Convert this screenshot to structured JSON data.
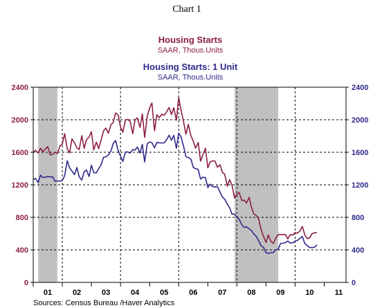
{
  "chart_label": "Chart 1",
  "source": "Sources:   Census Bureau /Haver Analytics",
  "colors": {
    "series1": "#8b1e3f",
    "series2": "#2e2a8c",
    "recession": "#c0c0c0"
  },
  "chart_data": {
    "type": "line",
    "series": [
      {
        "name": "Housing Starts",
        "unit": "SAAR, Thous.Units",
        "color": "#8b1e3f",
        "x": [
          2001.0,
          2001.08,
          2001.17,
          2001.25,
          2001.33,
          2001.42,
          2001.5,
          2001.58,
          2001.67,
          2001.75,
          2001.83,
          2001.92,
          2002.0,
          2002.08,
          2002.17,
          2002.25,
          2002.33,
          2002.42,
          2002.5,
          2002.58,
          2002.67,
          2002.75,
          2002.83,
          2002.92,
          2003.0,
          2003.08,
          2003.17,
          2003.25,
          2003.33,
          2003.42,
          2003.5,
          2003.58,
          2003.67,
          2003.75,
          2003.83,
          2003.92,
          2004.0,
          2004.08,
          2004.17,
          2004.25,
          2004.33,
          2004.42,
          2004.5,
          2004.58,
          2004.67,
          2004.75,
          2004.83,
          2004.92,
          2005.0,
          2005.08,
          2005.17,
          2005.25,
          2005.33,
          2005.42,
          2005.5,
          2005.58,
          2005.67,
          2005.75,
          2005.83,
          2005.92,
          2006.0,
          2006.08,
          2006.17,
          2006.25,
          2006.33,
          2006.42,
          2006.5,
          2006.58,
          2006.67,
          2006.75,
          2006.83,
          2006.92,
          2007.0,
          2007.08,
          2007.17,
          2007.25,
          2007.33,
          2007.42,
          2007.5,
          2007.58,
          2007.67,
          2007.75,
          2007.83,
          2007.92,
          2008.0,
          2008.08,
          2008.17,
          2008.25,
          2008.33,
          2008.42,
          2008.5,
          2008.58,
          2008.67,
          2008.75,
          2008.83,
          2008.92,
          2009.0,
          2009.08,
          2009.17,
          2009.25,
          2009.33,
          2009.42,
          2009.5,
          2009.58,
          2009.67,
          2009.75,
          2009.83,
          2009.92,
          2010.0,
          2010.08,
          2010.17,
          2010.25,
          2010.33,
          2010.42,
          2010.5,
          2010.58,
          2010.67,
          2010.75
        ],
        "values": [
          1600,
          1625,
          1590,
          1649,
          1606,
          1642,
          1670,
          1567,
          1575,
          1602,
          1584,
          1680,
          1698,
          1829,
          1642,
          1592,
          1764,
          1717,
          1655,
          1633,
          1804,
          1648,
          1753,
          1788,
          1853,
          1629,
          1726,
          1643,
          1751,
          1867,
          1897,
          1833,
          1939,
          1967,
          2083,
          2057,
          1911,
          1846,
          1998,
          2003,
          1981,
          1828,
          2002,
          2024,
          1905,
          2072,
          1782,
          2042,
          2144,
          2207,
          1864,
          2061,
          2025,
          2068,
          2054,
          2095,
          2151,
          2065,
          2147,
          1994,
          2273,
          2119,
          1969,
          1821,
          1942,
          1802,
          1737,
          1650,
          1720,
          1491,
          1570,
          1649,
          1409,
          1480,
          1495,
          1490,
          1415,
          1448,
          1354,
          1330,
          1183,
          1264,
          1197,
          1037,
          1084,
          1103,
          1005,
          1013,
          975,
          1046,
          923,
          844,
          820,
          777,
          652,
          560,
          490,
          582,
          505,
          478,
          540,
          587,
          589,
          586,
          588,
          534,
          588,
          581,
          614,
          605,
          636,
          687,
          588,
          539,
          546,
          598,
          610,
          612
        ],
        "recessions": [
          [
            2001.17,
            2001.83
          ],
          [
            2007.92,
            2009.42
          ]
        ]
      },
      {
        "name": "Housing Starts: 1 Unit",
        "unit": "SAAR, Thous.Units",
        "color": "#2e2a8c",
        "x": [
          2001.0,
          2001.08,
          2001.17,
          2001.25,
          2001.33,
          2001.42,
          2001.5,
          2001.58,
          2001.67,
          2001.75,
          2001.83,
          2001.92,
          2002.0,
          2002.08,
          2002.17,
          2002.25,
          2002.33,
          2002.42,
          2002.5,
          2002.58,
          2002.67,
          2002.75,
          2002.83,
          2002.92,
          2003.0,
          2003.08,
          2003.17,
          2003.25,
          2003.33,
          2003.42,
          2003.5,
          2003.58,
          2003.67,
          2003.75,
          2003.83,
          2003.92,
          2004.0,
          2004.08,
          2004.17,
          2004.25,
          2004.33,
          2004.42,
          2004.5,
          2004.58,
          2004.67,
          2004.75,
          2004.83,
          2004.92,
          2005.0,
          2005.08,
          2005.17,
          2005.25,
          2005.33,
          2005.42,
          2005.5,
          2005.58,
          2005.67,
          2005.75,
          2005.83,
          2005.92,
          2006.0,
          2006.08,
          2006.17,
          2006.25,
          2006.33,
          2006.42,
          2006.5,
          2006.58,
          2006.67,
          2006.75,
          2006.83,
          2006.92,
          2007.0,
          2007.08,
          2007.17,
          2007.25,
          2007.33,
          2007.42,
          2007.5,
          2007.58,
          2007.67,
          2007.75,
          2007.83,
          2007.92,
          2008.0,
          2008.08,
          2008.17,
          2008.25,
          2008.33,
          2008.42,
          2008.5,
          2008.58,
          2008.67,
          2008.75,
          2008.83,
          2008.92,
          2009.0,
          2009.08,
          2009.17,
          2009.25,
          2009.33,
          2009.42,
          2009.5,
          2009.58,
          2009.67,
          2009.75,
          2009.83,
          2009.92,
          2010.0,
          2010.08,
          2010.17,
          2010.25,
          2010.33,
          2010.42,
          2010.5,
          2010.58,
          2010.67,
          2010.75
        ],
        "values": [
          1263,
          1278,
          1226,
          1318,
          1290,
          1294,
          1305,
          1296,
          1297,
          1243,
          1246,
          1246,
          1253,
          1311,
          1496,
          1406,
          1370,
          1325,
          1414,
          1300,
          1258,
          1358,
          1382,
          1302,
          1441,
          1349,
          1346,
          1400,
          1445,
          1540,
          1544,
          1565,
          1615,
          1706,
          1745,
          1619,
          1555,
          1487,
          1603,
          1604,
          1589,
          1633,
          1627,
          1665,
          1590,
          1697,
          1480,
          1704,
          1727,
          1718,
          1655,
          1722,
          1715,
          1715,
          1715,
          1752,
          1810,
          1747,
          1808,
          1649,
          1836,
          1789,
          1669,
          1544,
          1536,
          1516,
          1413,
          1399,
          1390,
          1270,
          1294,
          1288,
          1166,
          1208,
          1177,
          1175,
          1180,
          1111,
          1051,
          1023,
          961,
          920,
          840,
          840,
          801,
          774,
          710,
          676,
          683,
          659,
          638,
          597,
          564,
          511,
          452,
          428,
          366,
          357,
          365,
          367,
          401,
          407,
          479,
          481,
          490,
          509,
          484,
          487,
          508,
          516,
          543,
          565,
          481,
          449,
          431,
          427,
          433,
          462
        ]
      }
    ],
    "recession_periods": [
      [
        "2001-03",
        "2001-11"
      ],
      [
        "2007-12",
        "2009-06"
      ]
    ],
    "xlim": [
      2001,
      2011.75
    ],
    "x_tick_labels": [
      "01",
      "02",
      "03",
      "04",
      "05",
      "06",
      "07",
      "08",
      "09",
      "10",
      "11"
    ],
    "ylim": [
      0,
      2400
    ],
    "y_ticks": [
      0,
      400,
      800,
      1200,
      1600,
      2000,
      2400
    ],
    "y_tick_labels": [
      "0",
      "400",
      "800",
      "1200",
      "1600",
      "2000",
      "2400"
    ],
    "grid": "dashed, every 400 on y; every other year on x",
    "dual_axis": true
  }
}
